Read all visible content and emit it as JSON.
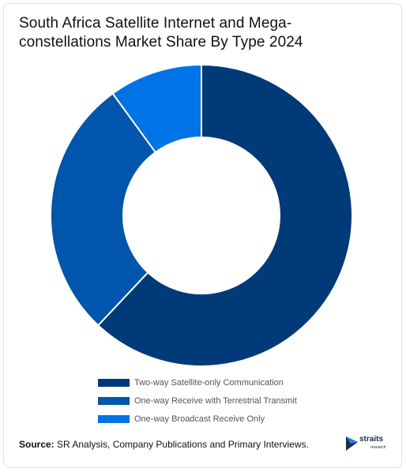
{
  "title": "South Africa Satellite Internet and Mega-constellations Market Share By Type 2024",
  "chart_data": {
    "type": "pie",
    "donut": true,
    "title": "South Africa Satellite Internet and Mega-constellations Market Share By Type 2024",
    "categories": [
      "Two-way Satellite-only Communication",
      "One-way Receive with Terrestrial Transmit",
      "One-way Broadcast Receive Only"
    ],
    "values": [
      62,
      28,
      10
    ],
    "colors": [
      "#003a78",
      "#0055ad",
      "#0073e6"
    ],
    "legend_position": "bottom"
  },
  "footer": {
    "source_label": "Source:",
    "source_text": " SR Analysis, Company Publications and Primary Interviews."
  },
  "logo": {
    "name": "straits",
    "sub": "research"
  }
}
